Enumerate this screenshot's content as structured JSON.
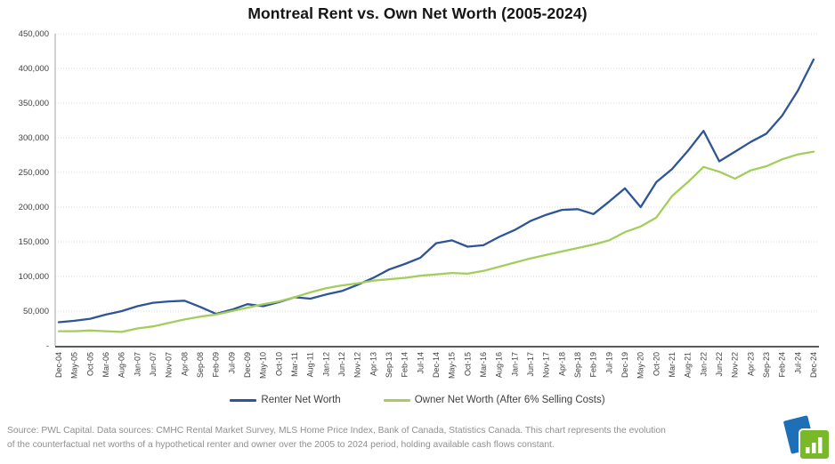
{
  "title": "Montreal Rent vs. Own Net Worth (2005-2024)",
  "chart_data": {
    "type": "line",
    "title": "Montreal Rent vs. Own Net Worth (2005-2024)",
    "xlabel": "",
    "ylabel": "",
    "ylim": [
      0,
      450000
    ],
    "ytick_step": 50000,
    "ytick_labels": [
      "-",
      "50,000",
      "100,000",
      "150,000",
      "200,000",
      "250,000",
      "300,000",
      "350,000",
      "400,000",
      "450,000"
    ],
    "grid": "horizontal-dotted",
    "legend_position": "bottom",
    "categories": [
      "Dec-04",
      "May-05",
      "Oct-05",
      "Mar-06",
      "Aug-06",
      "Jan-07",
      "Jun-07",
      "Nov-07",
      "Apr-08",
      "Sep-08",
      "Feb-09",
      "Jul-09",
      "Dec-09",
      "May-10",
      "Oct-10",
      "Mar-11",
      "Aug-11",
      "Jan-12",
      "Jun-12",
      "Nov-12",
      "Apr-13",
      "Sep-13",
      "Feb-14",
      "Jul-14",
      "Dec-14",
      "May-15",
      "Oct-15",
      "Mar-16",
      "Aug-16",
      "Jan-17",
      "Jun-17",
      "Nov-17",
      "Apr-18",
      "Sep-18",
      "Feb-19",
      "Jul-19",
      "Dec-19",
      "May-20",
      "Oct-20",
      "Mar-21",
      "Aug-21",
      "Jan-22",
      "Jun-22",
      "Nov-22",
      "Apr-23",
      "Sep-23",
      "Feb-24",
      "Jul-24",
      "Dec-24"
    ],
    "series": [
      {
        "name": "Renter Net Worth",
        "color": "#2e5597",
        "values": [
          34000,
          36000,
          39000,
          45000,
          50000,
          57000,
          62000,
          64000,
          65000,
          56000,
          46000,
          52000,
          60000,
          57000,
          63000,
          70000,
          68000,
          74000,
          79000,
          88000,
          98000,
          110000,
          118000,
          127000,
          148000,
          152000,
          143000,
          145000,
          157000,
          167000,
          180000,
          189000,
          196000,
          197000,
          190000,
          208000,
          227000,
          200000,
          236000,
          255000,
          281000,
          310000,
          266000,
          280000,
          294000,
          306000,
          332000,
          368000,
          413000
        ]
      },
      {
        "name": "Owner Net Worth (After 6% Selling Costs)",
        "color": "#a3ce5c",
        "values": [
          21000,
          21000,
          22000,
          21000,
          20000,
          25000,
          28000,
          33000,
          38000,
          42000,
          45000,
          50000,
          55000,
          60000,
          64000,
          70000,
          77000,
          83000,
          87000,
          90000,
          94000,
          96000,
          98000,
          101000,
          103000,
          105000,
          104000,
          108000,
          114000,
          120000,
          126000,
          131000,
          136000,
          141000,
          146000,
          152000,
          164000,
          172000,
          185000,
          216000,
          236000,
          258000,
          251000,
          241000,
          253000,
          259000,
          269000,
          276000,
          280000
        ]
      }
    ]
  },
  "footer": {
    "text": "Source: PWL Capital. Data sources: CMHC Rental Market Survey, MLS Home Price Index, Bank of Canada, Statistics Canada. This chart represents the evolution of the counterfactual net worths of a hypothetical renter and owner over the 2005 to 2024 period, holding available cash flows constant."
  },
  "logo": {
    "name": "PWL Capital logo",
    "blue": "#1d70b7",
    "green": "#79b829"
  },
  "colors": {
    "grid": "#d9d9d9",
    "axis_left": "#a6a6a6",
    "axis_bottom": "#595959",
    "tick_text": "#404040"
  }
}
